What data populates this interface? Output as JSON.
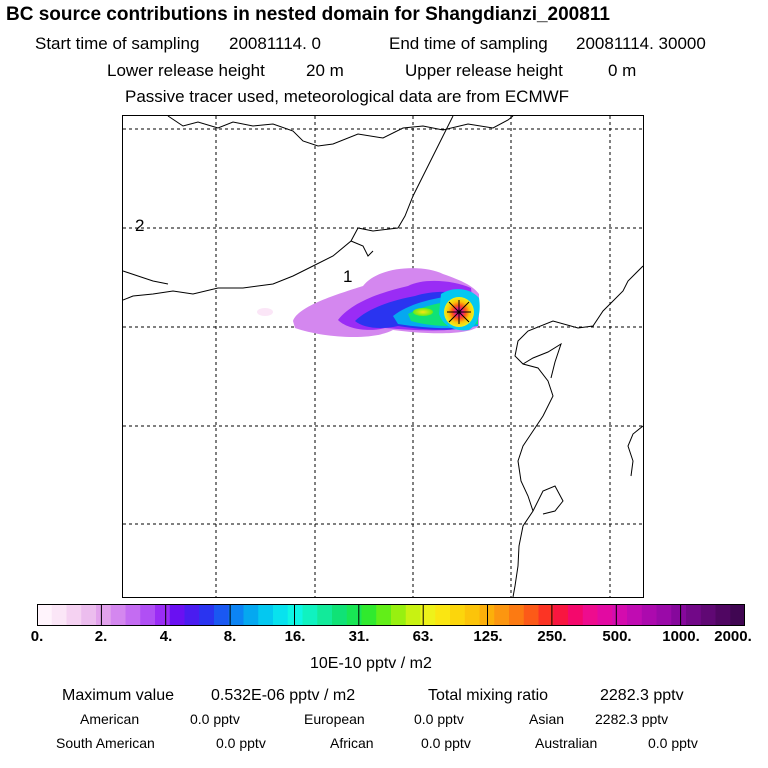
{
  "chart_data": {
    "type": "heatmap",
    "title": "BC  source contributions in nested domain for Shangdianzi_200811",
    "header": {
      "start_label": "Start time of sampling",
      "start_value": "20081114.     0",
      "end_label": "End time of sampling",
      "end_value": "20081114. 30000",
      "lower_label": "Lower release height",
      "lower_value": "20 m",
      "upper_label": "Upper release height",
      "upper_value": "0 m",
      "note": "Passive tracer used, meteorological data are from ECMWF"
    },
    "map_labels": [
      "2",
      "1"
    ],
    "colorbar": {
      "units": "10E-10 pptv / m2",
      "ticks": [
        "0.",
        "2.",
        "4.",
        "8.",
        "16.",
        "31.",
        "63.",
        "125.",
        "250.",
        "500.",
        "1000.",
        "2000."
      ],
      "colors": [
        "#fff4fc",
        "#fbe6f7",
        "#f5d2f2",
        "#ecbdee",
        "#e2a2ec",
        "#d487ef",
        "#c46cf2",
        "#b04ff4",
        "#9a2cf5",
        "#6a10f2",
        "#4a1cf0",
        "#2a34f0",
        "#1a58f2",
        "#0c84f4",
        "#05a8f0",
        "#04c8f0",
        "#08e2ee",
        "#0ef6e4",
        "#10f2c0",
        "#12ea9a",
        "#10e276",
        "#18e654",
        "#30ea2e",
        "#62ee18",
        "#98f010",
        "#c8f212",
        "#eef21a",
        "#fae612",
        "#fcd60c",
        "#fcc40a",
        "#fcaf0a",
        "#fc9610",
        "#fc7a12",
        "#fc5a18",
        "#fc3424",
        "#f81640",
        "#f4086c",
        "#ee0c8e",
        "#e20aa2",
        "#d40cae",
        "#c00cb2",
        "#ac0aae",
        "#9a0aa8",
        "#86089c",
        "#720888",
        "#600874",
        "#500662",
        "#400652"
      ]
    },
    "summary": {
      "max_label": "Maximum value",
      "max_value": "0.532E-06 pptv / m2",
      "total_label": "Total mixing ratio",
      "total_value": "2282.3 pptv"
    },
    "regions": [
      {
        "name": "American",
        "value": "0.0 pptv"
      },
      {
        "name": "European",
        "value": "0.0 pptv"
      },
      {
        "name": "Asian",
        "value": "2282.3 pptv"
      },
      {
        "name": "South American",
        "value": "0.0 pptv"
      },
      {
        "name": "African",
        "value": "0.0 pptv"
      },
      {
        "name": "Australian",
        "value": "0.0 pptv"
      }
    ],
    "colors": {
      "frame": "#000000",
      "background": "#ffffff",
      "peak": "#e8128c"
    }
  }
}
